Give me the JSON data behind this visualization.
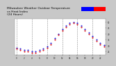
{
  "title": "Milwaukee Weather Outdoor Temperature\nvs Heat Index\n(24 Hours)",
  "title_fontsize": 3.2,
  "bg_color": "#c8c8c8",
  "plot_bg_color": "#ffffff",
  "grid_color": "#888888",
  "hours": [
    0,
    1,
    2,
    3,
    4,
    5,
    6,
    7,
    8,
    9,
    10,
    11,
    12,
    13,
    14,
    15,
    16,
    17,
    18,
    19,
    20,
    21,
    22,
    23
  ],
  "temp": [
    28,
    27,
    26,
    26,
    25,
    25,
    26,
    27,
    29,
    32,
    36,
    40,
    44,
    47,
    49,
    50,
    49,
    47,
    44,
    41,
    38,
    35,
    32,
    30
  ],
  "heat_index": [
    27,
    26,
    25,
    25,
    24,
    24,
    25,
    26,
    28,
    31,
    35,
    39,
    43,
    46,
    48,
    49,
    48,
    46,
    43,
    40,
    37,
    34,
    31,
    29
  ],
  "temp_color": "#0000dd",
  "heat_color": "#dd0000",
  "ylim": [
    22,
    53
  ],
  "ytick_vals": [
    25,
    30,
    35,
    40,
    45,
    50
  ],
  "bar_blue": "#0000ff",
  "bar_red": "#ff0000"
}
